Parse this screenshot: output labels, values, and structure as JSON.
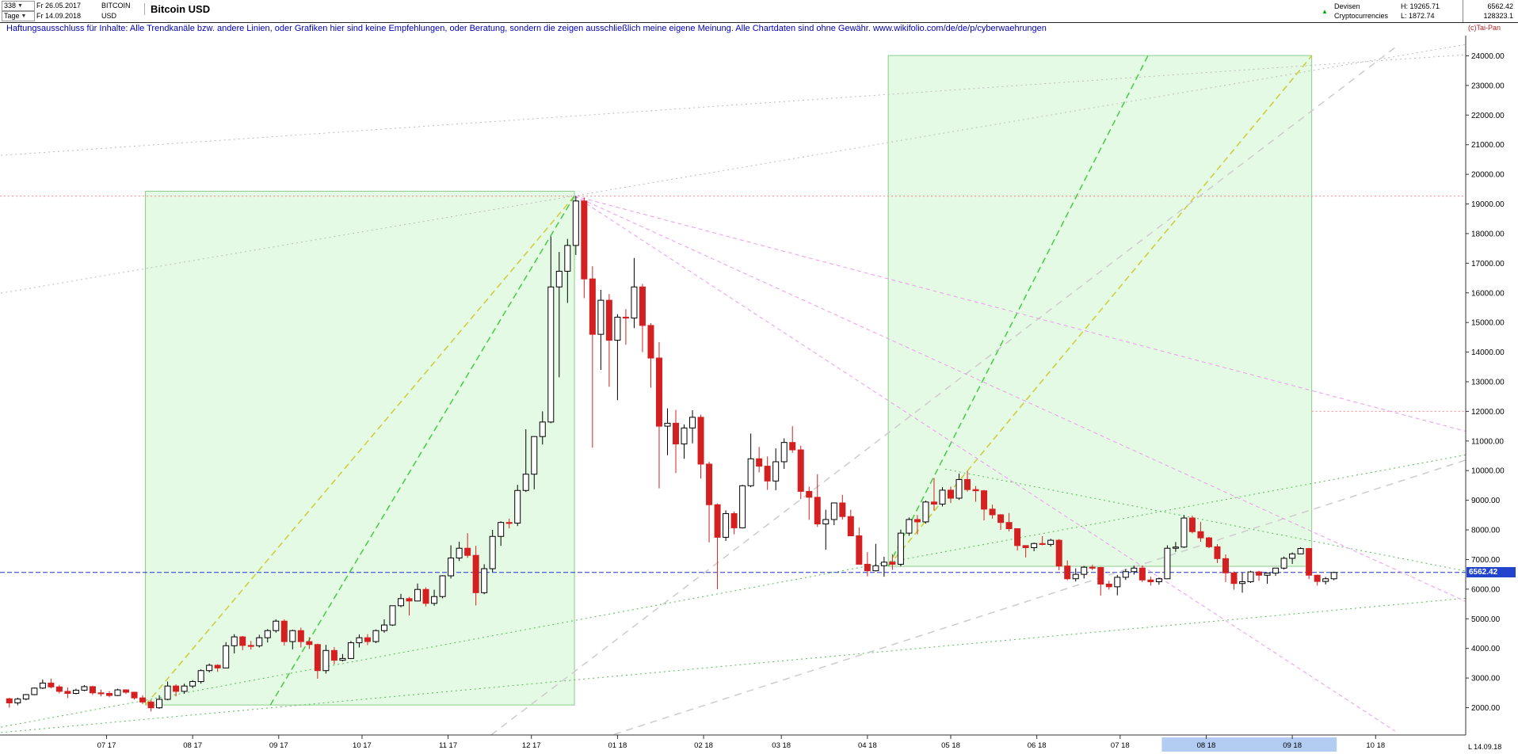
{
  "header": {
    "bars": "338",
    "period": "Tage",
    "date_from": "Fr 26.05.2017",
    "date_to": "Fr 14.09.2018",
    "symbol": "BITCOIN",
    "currency": "USD",
    "title": "Bitcoin USD",
    "market": "Devisen",
    "category": "Cryptocurrencies",
    "high": "H: 19265.71",
    "low": "L: 1872.74",
    "last": "6562.42",
    "volume": "128323.1",
    "copyright": "(c)Tai-Pan"
  },
  "disclaimer": "Haftungsausschluss für Inhalte: Alle Trendkanäle bzw. andere Linien, oder Grafiken hier sind keine Empfehlungen, oder Beratung, sondern die zeigen ausschließlich meine eigene Meinung. Alle Chartdaten sind ohne Gewähr.  www.wikifolio.com/de/de/p/cyberwaehrungen",
  "price_tag": "6562.42",
  "footer": {
    "last_info": "L 14.09.18"
  },
  "colors": {
    "up_stroke": "#000000",
    "up_fill": "#ffffff",
    "down": "#d42020",
    "box_fill": "rgba(170,240,170,0.30)",
    "box_stroke": "#8ccc8c",
    "blue_line": "#2233cc",
    "red_line": "#ff8888",
    "green_dot": "#55bb55",
    "green_dash": "#44cc44",
    "yellow_dash": "#cccc33",
    "pink_dash": "#ee99ee",
    "gray": "#c0c0c0",
    "band": "#b3cdf2",
    "axis": "#333333"
  },
  "chart_data": {
    "type": "candlestick",
    "title": "Bitcoin USD",
    "start_date": "2017-05-26",
    "end_date": "2018-09-14",
    "days_per_candle": 3,
    "high": 19265.71,
    "low": 1872.74,
    "last": 6562.42,
    "y_axis": {
      "min": 2000,
      "max": 24000,
      "step": 1000,
      "label_format": "0.00"
    },
    "x_ticks": [
      {
        "label": "07 17",
        "day": 36
      },
      {
        "label": "08 17",
        "day": 67
      },
      {
        "label": "09 17",
        "day": 98
      },
      {
        "label": "10 17",
        "day": 128
      },
      {
        "label": "11 17",
        "day": 159
      },
      {
        "label": "12 17",
        "day": 189
      },
      {
        "label": "01 18",
        "day": 220
      },
      {
        "label": "02 18",
        "day": 251
      },
      {
        "label": "03 18",
        "day": 279
      },
      {
        "label": "04 18",
        "day": 310
      },
      {
        "label": "05 18",
        "day": 340
      },
      {
        "label": "06 18",
        "day": 371
      },
      {
        "label": "07 18",
        "day": 401
      },
      {
        "label": "08 18",
        "day": 432
      },
      {
        "label": "09 18",
        "day": 463
      },
      {
        "label": "10 18",
        "day": 493
      }
    ],
    "x_highlight": {
      "d1": 416,
      "d2": 479
    },
    "boxes": [
      {
        "name": "trend-box-2017",
        "d1": 50,
        "v1": 2090,
        "d2": 204.5,
        "v2": 19430
      },
      {
        "name": "trend-box-2018",
        "d1": 317.5,
        "v1": 6770,
        "d2": 470,
        "v2": 24010
      }
    ],
    "lines": [
      {
        "name": "ath-resistance",
        "type": "hline",
        "value": 19265.71,
        "color": "#ff8888",
        "dash": "2 3",
        "w": 1
      },
      {
        "name": "resistance-12000",
        "type": "hline",
        "value": 12000,
        "d1": 470,
        "d2": 526,
        "color": "#ff8888",
        "dash": "2 3",
        "w": 1
      },
      {
        "name": "last-price-line",
        "type": "hline",
        "value": 6562.42,
        "color": "#2233cc",
        "dash": "6 3",
        "w": 1
      },
      {
        "name": "support-dotted-long",
        "type": "line",
        "d1": -2,
        "v1": 1160,
        "d2": 526,
        "v2": 5700,
        "color": "#55bb55",
        "dash": "2 4",
        "w": 1
      },
      {
        "name": "support-dotted-steep",
        "type": "line",
        "d1": -2,
        "v1": 1345,
        "d2": 526,
        "v2": 10540,
        "color": "#55bb55",
        "dash": "2 4",
        "w": 1
      },
      {
        "name": "resistance-dotted-desc",
        "type": "line",
        "d1": 338,
        "v1": 10050,
        "d2": 526,
        "v2": 6600,
        "color": "#55bb55",
        "dash": "2 4",
        "w": 1
      },
      {
        "name": "trend-yellow-2017",
        "type": "line",
        "d1": 50,
        "v1": 2090,
        "d2": 204.5,
        "v2": 19270,
        "color": "#cccc33",
        "dash": "8 5",
        "w": 1.5
      },
      {
        "name": "trend-green-2017",
        "type": "line",
        "d1": 95,
        "v1": 2090,
        "d2": 204.5,
        "v2": 19270,
        "color": "#44cc44",
        "dash": "8 5",
        "w": 1.5
      },
      {
        "name": "trend-yellow-2018",
        "type": "line",
        "d1": 317.5,
        "v1": 6770,
        "d2": 470,
        "v2": 24000,
        "color": "#cccc33",
        "dash": "8 5",
        "w": 1.5
      },
      {
        "name": "trend-green-2018",
        "type": "line",
        "d1": 317.5,
        "v1": 6770,
        "d2": 411,
        "v2": 24000,
        "color": "#44cc44",
        "dash": "8 5",
        "w": 1.5
      },
      {
        "name": "gray-dotted-peak",
        "type": "line",
        "d1": -2,
        "v1": 15990,
        "d2": 526,
        "v2": 24390,
        "color": "#bbbbbb",
        "dash": "2 4",
        "w": 1
      },
      {
        "name": "gray-dotted-top",
        "type": "line",
        "d1": -2,
        "v1": 20640,
        "d2": 526,
        "v2": 24040,
        "color": "#bbbbbb",
        "dash": "2 4",
        "w": 1
      },
      {
        "name": "gray-dashed-rising",
        "type": "line",
        "d1": 174.5,
        "v1": 1080,
        "d2": 500,
        "v2": 24280,
        "color": "#cccccc",
        "dash": "9 7",
        "w": 1.5
      },
      {
        "name": "gray-dashed-lower",
        "type": "line",
        "d1": 197,
        "v1": 440,
        "d2": 544,
        "v2": 10915,
        "color": "#cccccc",
        "dash": "9 7",
        "w": 1.5
      },
      {
        "name": "fan-pink-steep",
        "type": "line",
        "d1": 204.5,
        "v1": 19270,
        "d2": 500,
        "v2": 1210,
        "color": "#ee99ee",
        "dash": "5 4",
        "w": 1
      },
      {
        "name": "fan-pink-mid",
        "type": "line",
        "d1": 204.5,
        "v1": 19270,
        "d2": 526,
        "v2": 5560,
        "color": "#ee99ee",
        "dash": "5 4",
        "w": 1
      },
      {
        "name": "fan-pink-shallow",
        "type": "line",
        "d1": 204.5,
        "v1": 19270,
        "d2": 526,
        "v2": 11315,
        "color": "#ee99ee",
        "dash": "5 4",
        "w": 1
      }
    ],
    "candles": [
      [
        2300,
        2330,
        1998,
        2160
      ],
      [
        2160,
        2340,
        2080,
        2290
      ],
      [
        2290,
        2460,
        2250,
        2440
      ],
      [
        2440,
        2680,
        2420,
        2660
      ],
      [
        2660,
        2950,
        2630,
        2830
      ],
      [
        2830,
        2980,
        2650,
        2700
      ],
      [
        2700,
        2770,
        2480,
        2550
      ],
      [
        2550,
        2680,
        2320,
        2480
      ],
      [
        2480,
        2640,
        2450,
        2590
      ],
      [
        2590,
        2760,
        2560,
        2710
      ],
      [
        2710,
        2740,
        2430,
        2500
      ],
      [
        2500,
        2610,
        2380,
        2480
      ],
      [
        2480,
        2560,
        2350,
        2410
      ],
      [
        2410,
        2640,
        2390,
        2600
      ],
      [
        2600,
        2620,
        2460,
        2520
      ],
      [
        2520,
        2540,
        2270,
        2330
      ],
      [
        2330,
        2420,
        2120,
        2190
      ],
      [
        2190,
        2260,
        1872.74,
        1995
      ],
      [
        1995,
        2420,
        1960,
        2280
      ],
      [
        2280,
        2880,
        2250,
        2730
      ],
      [
        2730,
        2790,
        2380,
        2550
      ],
      [
        2550,
        2810,
        2470,
        2730
      ],
      [
        2730,
        2930,
        2660,
        2880
      ],
      [
        2880,
        3290,
        2810,
        3250
      ],
      [
        3250,
        3490,
        3190,
        3430
      ],
      [
        3430,
        3460,
        3210,
        3340
      ],
      [
        3340,
        4210,
        3330,
        4090
      ],
      [
        4090,
        4480,
        3830,
        4390
      ],
      [
        4390,
        4420,
        3940,
        4100
      ],
      [
        4100,
        4250,
        3960,
        4090
      ],
      [
        4090,
        4460,
        4030,
        4360
      ],
      [
        4360,
        4650,
        4200,
        4600
      ],
      [
        4600,
        4980,
        4530,
        4920
      ],
      [
        4920,
        4980,
        4100,
        4230
      ],
      [
        4230,
        4630,
        3970,
        4600
      ],
      [
        4600,
        4700,
        4030,
        4230
      ],
      [
        4230,
        4380,
        3980,
        4130
      ],
      [
        4130,
        4160,
        2975,
        3250
      ],
      [
        3250,
        4120,
        3150,
        3930
      ],
      [
        3930,
        4040,
        3460,
        3600
      ],
      [
        3600,
        3810,
        3560,
        3660
      ],
      [
        3660,
        4250,
        3640,
        4190
      ],
      [
        4190,
        4470,
        4030,
        4360
      ],
      [
        4360,
        4480,
        4110,
        4230
      ],
      [
        4230,
        4640,
        4180,
        4600
      ],
      [
        4600,
        4980,
        4530,
        4790
      ],
      [
        4790,
        5450,
        4760,
        5440
      ],
      [
        5440,
        5840,
        5390,
        5680
      ],
      [
        5680,
        5740,
        5110,
        5600
      ],
      [
        5600,
        6190,
        5590,
        5990
      ],
      [
        5990,
        6060,
        5420,
        5520
      ],
      [
        5520,
        5980,
        5440,
        5750
      ],
      [
        5750,
        6470,
        5690,
        6450
      ],
      [
        6450,
        7480,
        6360,
        7050
      ],
      [
        7050,
        7600,
        6950,
        7380
      ],
      [
        7380,
        7890,
        7060,
        7140
      ],
      [
        7140,
        7460,
        5450,
        5880
      ],
      [
        5880,
        6840,
        5830,
        6690
      ],
      [
        6690,
        8000,
        6580,
        7780
      ],
      [
        7780,
        8290,
        7460,
        8250
      ],
      [
        8250,
        8380,
        8050,
        8230
      ],
      [
        8230,
        9520,
        8130,
        9330
      ],
      [
        9330,
        11395,
        9280,
        9880
      ],
      [
        9880,
        11160,
        9370,
        11150
      ],
      [
        11150,
        12000,
        10880,
        11640
      ],
      [
        11640,
        17900,
        11600,
        16200
      ],
      [
        16200,
        17380,
        13150,
        16730
      ],
      [
        16730,
        17820,
        15660,
        17600
      ],
      [
        17600,
        19265.71,
        17280,
        19100
      ],
      [
        19100,
        19220,
        15820,
        16470
      ],
      [
        16470,
        16900,
        10776,
        14600
      ],
      [
        14600,
        16100,
        13400,
        15750
      ],
      [
        15750,
        15960,
        12830,
        14400
      ],
      [
        14400,
        15280,
        12380,
        15180
      ],
      [
        15180,
        15450,
        14250,
        15150
      ],
      [
        15150,
        17176,
        14810,
        16200
      ],
      [
        16200,
        16300,
        14000,
        14900
      ],
      [
        14900,
        14980,
        12800,
        13800
      ],
      [
        13800,
        14340,
        9400,
        11500
      ],
      [
        11500,
        12100,
        10520,
        11600
      ],
      [
        11600,
        12050,
        9920,
        10900
      ],
      [
        10900,
        11560,
        10400,
        11440
      ],
      [
        11440,
        12040,
        10920,
        11800
      ],
      [
        11800,
        11890,
        9730,
        10220
      ],
      [
        10220,
        10300,
        7580,
        8850
      ],
      [
        8850,
        8890,
        5995,
        7750
      ],
      [
        7750,
        8660,
        7630,
        8550
      ],
      [
        8550,
        8620,
        7850,
        8070
      ],
      [
        8070,
        9520,
        8050,
        9490
      ],
      [
        9490,
        11250,
        9440,
        10400
      ],
      [
        10400,
        10800,
        9940,
        10150
      ],
      [
        10150,
        10480,
        9350,
        9650
      ],
      [
        9650,
        10750,
        9340,
        10300
      ],
      [
        10300,
        11090,
        10060,
        10950
      ],
      [
        10950,
        11500,
        10600,
        10700
      ],
      [
        10700,
        10840,
        9040,
        9300
      ],
      [
        9300,
        9460,
        8340,
        9100
      ],
      [
        9100,
        9880,
        8100,
        8200
      ],
      [
        8200,
        8680,
        7330,
        8350
      ],
      [
        8350,
        8920,
        8160,
        8910
      ],
      [
        8910,
        9180,
        8350,
        8450
      ],
      [
        8450,
        8680,
        7790,
        7800
      ],
      [
        7800,
        8080,
        6850,
        6840
      ],
      [
        6840,
        7250,
        6430,
        6620
      ],
      [
        6620,
        7530,
        6600,
        6790
      ],
      [
        6790,
        7090,
        6420,
        6910
      ],
      [
        6910,
        7180,
        6650,
        6840
      ],
      [
        6840,
        8010,
        6770,
        7890
      ],
      [
        7890,
        8420,
        7800,
        8350
      ],
      [
        8350,
        8500,
        7850,
        8270
      ],
      [
        8270,
        8990,
        8210,
        8940
      ],
      [
        8940,
        9750,
        8650,
        8870
      ],
      [
        8870,
        9440,
        8790,
        9340
      ],
      [
        9340,
        9460,
        8910,
        9070
      ],
      [
        9070,
        9900,
        9010,
        9700
      ],
      [
        9700,
        9990,
        9290,
        9360
      ],
      [
        9360,
        9480,
        8950,
        9320
      ],
      [
        9320,
        9350,
        8320,
        8700
      ],
      [
        8700,
        8850,
        8380,
        8510
      ],
      [
        8510,
        8530,
        8000,
        8250
      ],
      [
        8250,
        8570,
        7950,
        8040
      ],
      [
        8040,
        8050,
        7300,
        7470
      ],
      [
        7470,
        7480,
        7070,
        7400
      ],
      [
        7400,
        7570,
        7280,
        7540
      ],
      [
        7540,
        7790,
        7480,
        7510
      ],
      [
        7510,
        7700,
        7440,
        7650
      ],
      [
        7650,
        7690,
        6640,
        6780
      ],
      [
        6780,
        6970,
        6300,
        6350
      ],
      [
        6350,
        6700,
        6260,
        6500
      ],
      [
        6500,
        6780,
        6360,
        6740
      ],
      [
        6740,
        6820,
        6640,
        6730
      ],
      [
        6730,
        6750,
        5780,
        6170
      ],
      [
        6170,
        6280,
        5980,
        6080
      ],
      [
        6080,
        6480,
        5790,
        6400
      ],
      [
        6400,
        6680,
        6310,
        6590
      ],
      [
        6590,
        6790,
        6490,
        6710
      ],
      [
        6710,
        6800,
        6240,
        6310
      ],
      [
        6310,
        6420,
        6120,
        6250
      ],
      [
        6250,
        6390,
        6150,
        6350
      ],
      [
        6350,
        7480,
        6340,
        7380
      ],
      [
        7380,
        7590,
        7260,
        7420
      ],
      [
        7420,
        8500,
        7390,
        8400
      ],
      [
        8400,
        8480,
        7880,
        7940
      ],
      [
        7940,
        8270,
        7600,
        7730
      ],
      [
        7730,
        7760,
        7380,
        7430
      ],
      [
        7430,
        7520,
        6880,
        7030
      ],
      [
        7030,
        7170,
        6240,
        6550
      ],
      [
        6550,
        6600,
        5980,
        6190
      ],
      [
        6190,
        6560,
        5880,
        6250
      ],
      [
        6250,
        6620,
        6210,
        6580
      ],
      [
        6580,
        6620,
        6280,
        6470
      ],
      [
        6470,
        6560,
        6180,
        6540
      ],
      [
        6540,
        6720,
        6450,
        6710
      ],
      [
        6710,
        7100,
        6660,
        7040
      ],
      [
        7040,
        7240,
        6850,
        7190
      ],
      [
        7190,
        7410,
        7180,
        7370
      ],
      [
        7370,
        7390,
        6340,
        6470
      ],
      [
        6470,
        6490,
        6120,
        6260
      ],
      [
        6260,
        6410,
        6160,
        6350
      ],
      [
        6350,
        6590,
        6300,
        6562.42
      ]
    ]
  }
}
